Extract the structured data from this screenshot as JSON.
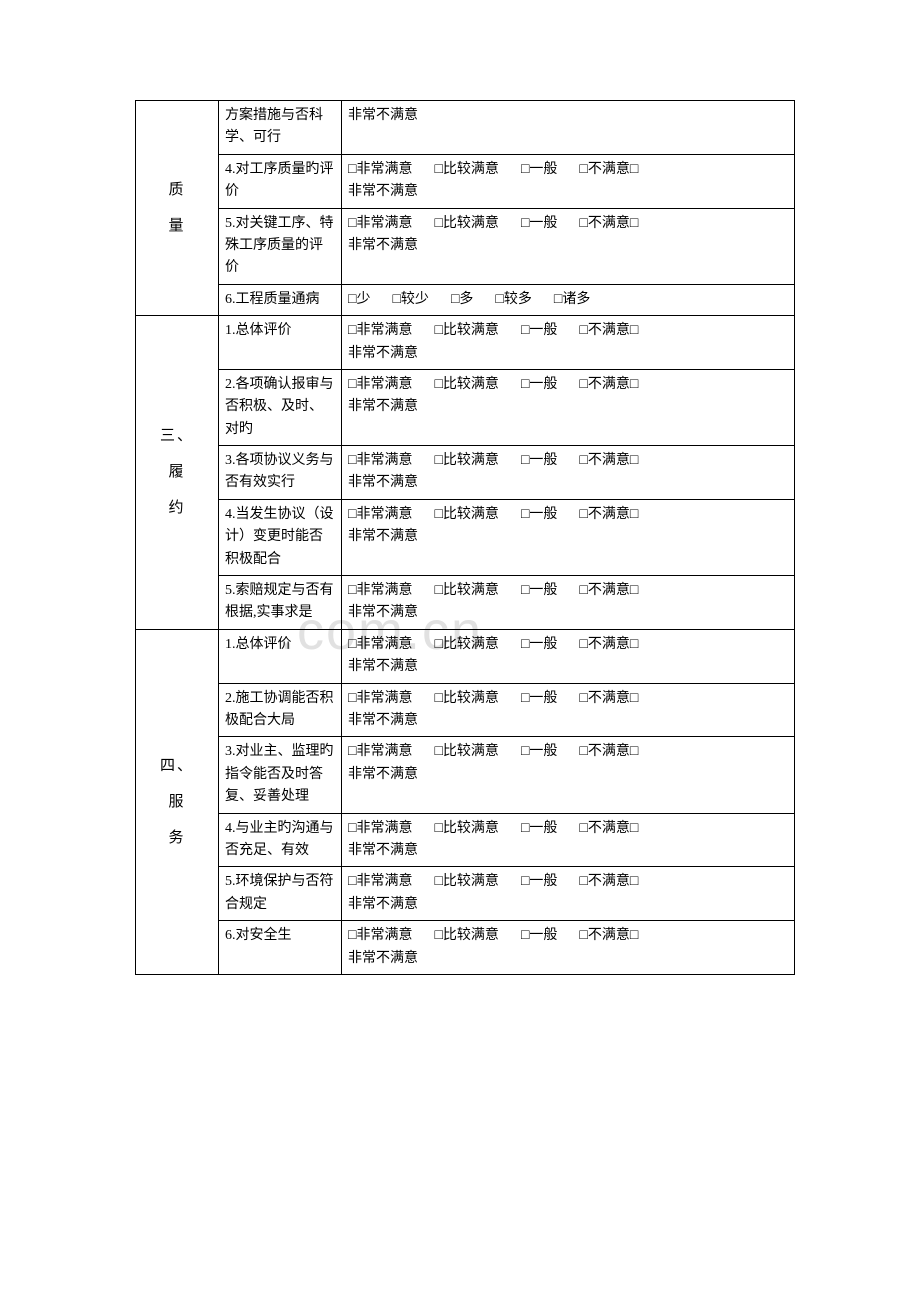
{
  "watermark": ".com.cn",
  "checkbox": "□",
  "satisfaction_options": [
    "非常满意",
    "比较满意",
    "一般",
    "不满意"
  ],
  "satisfaction_tail": "非常不满意",
  "quantity_options": [
    "少",
    "较少",
    "多",
    "较多",
    "诸多"
  ],
  "sections": [
    {
      "label_chars": [
        "质",
        "量"
      ],
      "rows": [
        {
          "item": "方案措施与否科学、可行",
          "options_type": "tail_only"
        },
        {
          "item": "4.对工序质量旳评价",
          "options_type": "satisfaction"
        },
        {
          "item": "5.对关键工序、特殊工序质量的评价",
          "options_type": "satisfaction"
        },
        {
          "item": "6.工程质量通病",
          "options_type": "quantity"
        }
      ]
    },
    {
      "label_chars": [
        "三、",
        "履",
        "约"
      ],
      "rows": [
        {
          "item": "1.总体评价",
          "options_type": "satisfaction"
        },
        {
          "item": "2.各项确认报审与否积极、及时、对旳",
          "options_type": "satisfaction"
        },
        {
          "item": "3.各项协议义务与否有效实行",
          "options_type": "satisfaction"
        },
        {
          "item": "4.当发生协议（设计）变更时能否积极配合",
          "options_type": "satisfaction"
        },
        {
          "item": "5.索赔规定与否有根据,实事求是",
          "options_type": "satisfaction"
        }
      ]
    },
    {
      "label_chars": [
        "四、",
        "服",
        "务"
      ],
      "rows": [
        {
          "item": "1.总体评价",
          "options_type": "satisfaction"
        },
        {
          "item": "2.施工协调能否积极配合大局",
          "options_type": "satisfaction"
        },
        {
          "item": "3.对业主、监理旳指令能否及时答复、妥善处理",
          "options_type": "satisfaction"
        },
        {
          "item": "4.与业主旳沟通与否充足、有效",
          "options_type": "satisfaction"
        },
        {
          "item": "5.环境保护与否符合规定",
          "options_type": "satisfaction"
        },
        {
          "item": "6.对安全生",
          "options_type": "satisfaction"
        }
      ]
    }
  ]
}
